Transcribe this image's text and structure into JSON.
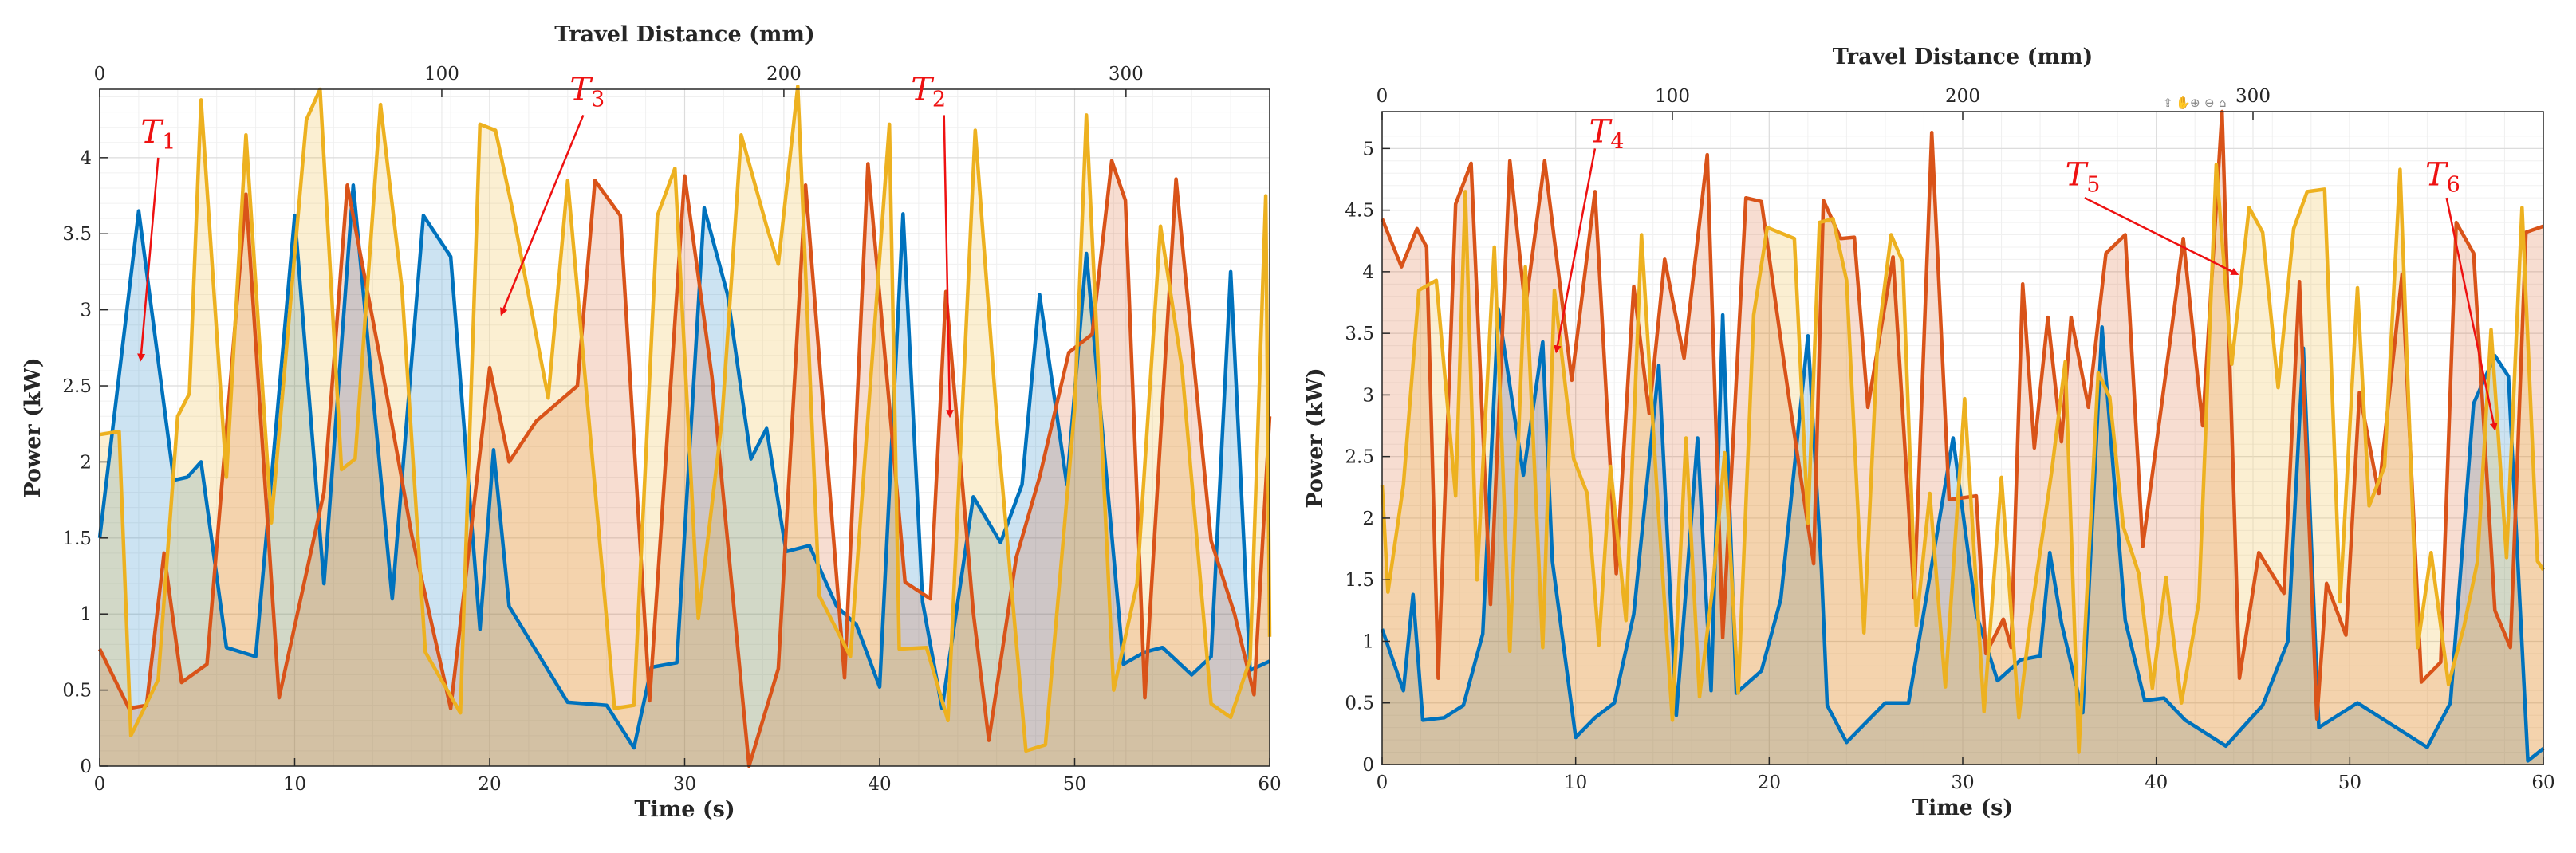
{
  "chart_data": [
    {
      "type": "area",
      "xlabel": "Time (s)",
      "ylabel": "Power (kW)",
      "x2label": "Travel Distance (mm)",
      "xlim": [
        0,
        60
      ],
      "ylim": [
        0,
        4.45
      ],
      "x2lim": [
        0,
        342
      ],
      "xticks": [
        0,
        10,
        20,
        30,
        40,
        50,
        60
      ],
      "yticks": [
        0,
        0.5,
        1,
        1.5,
        2,
        2.5,
        3,
        3.5,
        4
      ],
      "yticklabels": [
        "0",
        "0.5",
        "1",
        "1.5",
        "2",
        "2.5",
        "3",
        "3.5",
        "4"
      ],
      "x2ticks": [
        0,
        100,
        200,
        300
      ],
      "grid": true,
      "series": [
        {
          "color": "#0072BD",
          "x": [
            0,
            2,
            3.8,
            4.5,
            5.2,
            6.5,
            8,
            10,
            11.5,
            13,
            15,
            16.6,
            18,
            19.5,
            20.2,
            21,
            24,
            26,
            27.4,
            28.3,
            29.6,
            31,
            32.2,
            33.4,
            34.2,
            35.2,
            36.4,
            37.8,
            38.8,
            40,
            41.2,
            42.2,
            43.2,
            44.8,
            46.2,
            47.3,
            48.2,
            49.6,
            50.6,
            52.5,
            53.6,
            54.5,
            56,
            57,
            58,
            59,
            60
          ],
          "y": [
            1.5,
            3.65,
            1.88,
            1.9,
            2.0,
            0.78,
            0.72,
            3.62,
            1.2,
            3.82,
            1.1,
            3.62,
            3.35,
            0.9,
            2.08,
            1.05,
            0.42,
            0.4,
            0.12,
            0.65,
            0.68,
            3.67,
            3.1,
            2.02,
            2.22,
            1.41,
            1.45,
            1.05,
            0.93,
            0.52,
            3.63,
            1.08,
            0.38,
            1.77,
            1.47,
            1.85,
            3.1,
            1.85,
            3.37,
            0.67,
            0.75,
            0.78,
            0.6,
            0.72,
            3.25,
            0.63,
            0.69
          ]
        },
        {
          "color": "#D95319",
          "x": [
            0,
            1.5,
            2.4,
            3.3,
            4.2,
            5.5,
            7.5,
            9.2,
            11.5,
            12.7,
            14.5,
            16,
            18,
            20,
            21,
            22.4,
            24.5,
            25.4,
            26.7,
            28.2,
            30,
            31.4,
            33.3,
            34.8,
            36.2,
            38.2,
            39.4,
            41.3,
            42.6,
            43.4,
            44.8,
            45.6,
            47,
            48.2,
            49.7,
            50.9,
            51.9,
            52.6,
            53.6,
            55.2,
            57,
            58.2,
            59.2,
            60
          ],
          "y": [
            0.77,
            0.38,
            0.4,
            1.4,
            0.55,
            0.67,
            3.76,
            0.45,
            1.8,
            3.82,
            2.6,
            1.52,
            0.38,
            2.62,
            2.0,
            2.27,
            2.5,
            3.85,
            3.62,
            0.43,
            3.88,
            2.56,
            0.0,
            0.64,
            3.82,
            0.58,
            3.96,
            1.21,
            1.1,
            3.12,
            1.01,
            0.17,
            1.37,
            1.9,
            2.72,
            2.84,
            3.98,
            3.72,
            0.45,
            3.86,
            1.48,
            1.0,
            0.47,
            2.3
          ]
        },
        {
          "color": "#EDB120",
          "x": [
            0,
            1,
            1.6,
            3,
            4,
            4.6,
            5.2,
            6.5,
            7.5,
            8.8,
            10.6,
            11.3,
            12.4,
            13.1,
            14.4,
            15.5,
            16.7,
            17.6,
            18.5,
            19.5,
            20.3,
            21.1,
            23,
            24,
            26.4,
            27.4,
            28.6,
            29.5,
            30.7,
            31.9,
            32.9,
            34.2,
            34.8,
            35.8,
            36.9,
            38.5,
            40.5,
            41,
            42.4,
            43.5,
            44.9,
            46.1,
            47.5,
            48.5,
            50,
            50.6,
            52,
            53.2,
            54.4,
            55.5,
            57,
            58,
            59,
            59.8,
            60
          ],
          "y": [
            2.18,
            2.2,
            0.2,
            0.57,
            2.3,
            2.45,
            4.38,
            1.9,
            4.15,
            1.6,
            4.25,
            4.45,
            1.95,
            2.02,
            4.35,
            3.14,
            0.75,
            0.55,
            0.35,
            4.22,
            4.18,
            3.7,
            2.42,
            3.85,
            0.38,
            0.4,
            3.62,
            3.93,
            0.97,
            2.26,
            4.15,
            3.55,
            3.3,
            4.47,
            1.12,
            0.72,
            4.22,
            0.77,
            0.78,
            0.3,
            4.18,
            2.13,
            0.1,
            0.14,
            2.35,
            4.28,
            0.5,
            1.2,
            3.55,
            2.62,
            0.41,
            0.32,
            0.7,
            3.75,
            0.85
          ]
        }
      ],
      "annotations": [
        {
          "label": "T",
          "sub": "1",
          "text_xy": [
            3.0,
            4.1
          ],
          "arrow_from": [
            3.0,
            4.0
          ],
          "arrow_to": [
            2.1,
            2.67
          ]
        },
        {
          "label": "T",
          "sub": "3",
          "text_xy": [
            25.0,
            4.38
          ],
          "arrow_from": [
            24.8,
            4.28
          ],
          "arrow_to": [
            20.6,
            2.97
          ]
        },
        {
          "label": "T",
          "sub": "2",
          "text_xy": [
            42.5,
            4.38
          ],
          "arrow_from": [
            43.3,
            4.28
          ],
          "arrow_to": [
            43.6,
            2.3
          ]
        }
      ]
    },
    {
      "type": "area",
      "xlabel": "Time (s)",
      "ylabel": "Power (kW)",
      "x2label": "Travel Distance (mm)",
      "xlim": [
        0,
        60
      ],
      "ylim": [
        0,
        5.3
      ],
      "x2lim": [
        0,
        400
      ],
      "xticks": [
        0,
        10,
        20,
        30,
        40,
        50,
        60
      ],
      "yticks": [
        0,
        0.5,
        1,
        1.5,
        2,
        2.5,
        3,
        3.5,
        4,
        4.5,
        5
      ],
      "yticklabels": [
        "0",
        "0.5",
        "1",
        "1.5",
        "2",
        "2.5",
        "3",
        "3.5",
        "4",
        "4.5",
        "5"
      ],
      "x2ticks": [
        0,
        100,
        200,
        300
      ],
      "grid": true,
      "series": [
        {
          "color": "#0072BD",
          "x": [
            0,
            1.1,
            1.6,
            2.1,
            3.2,
            4.2,
            5.2,
            6,
            7.3,
            8.3,
            8.8,
            10,
            11,
            12,
            13,
            14.3,
            15.2,
            16.3,
            17,
            17.6,
            18.3,
            19.6,
            20.6,
            22,
            22.7,
            23,
            24,
            26,
            27.2,
            29.5,
            30.7,
            31.8,
            33,
            34,
            34.5,
            35.1,
            36.2,
            37.2,
            38.4,
            39.4,
            40.4,
            41.5,
            43.6,
            45.5,
            46.8,
            47.6,
            48.4,
            50.4,
            52.9,
            54,
            55.2,
            56.4,
            57.5,
            58.2,
            59.2,
            60
          ],
          "y": [
            1.1,
            0.6,
            1.38,
            0.36,
            0.38,
            0.48,
            1.06,
            3.7,
            2.35,
            3.43,
            1.65,
            0.22,
            0.38,
            0.5,
            1.22,
            3.24,
            0.4,
            2.65,
            0.6,
            3.65,
            0.58,
            0.76,
            1.34,
            3.48,
            1.58,
            0.48,
            0.18,
            0.5,
            0.5,
            2.65,
            1.22,
            0.68,
            0.85,
            0.88,
            1.72,
            1.15,
            0.42,
            3.55,
            1.17,
            0.52,
            0.54,
            0.36,
            0.15,
            0.48,
            1.0,
            3.38,
            0.3,
            0.5,
            0.25,
            0.14,
            0.5,
            2.93,
            3.32,
            3.15,
            0.03,
            0.13
          ]
        },
        {
          "color": "#D95319",
          "x": [
            0,
            1,
            1.8,
            2.3,
            2.9,
            3.8,
            4.6,
            5.6,
            6.6,
            7.4,
            8.4,
            9.8,
            11,
            12.1,
            13,
            13.8,
            14.6,
            15.6,
            16.8,
            17.6,
            18.8,
            19.6,
            21,
            22.3,
            22.8,
            23.7,
            24.4,
            25.1,
            26.4,
            27.5,
            28.4,
            29.3,
            30.7,
            31.2,
            32.1,
            32.5,
            33.1,
            33.7,
            34.4,
            35.1,
            35.6,
            36.5,
            37.4,
            38.4,
            39.3,
            40.7,
            41.4,
            42.4,
            43.4,
            44.3,
            45.3,
            46.6,
            47.4,
            48.3,
            48.8,
            49.8,
            50.5,
            51.5,
            52.7,
            53.7,
            54.7,
            55.5,
            56.4,
            57.5,
            58.3,
            59.1,
            60
          ],
          "y": [
            4.43,
            4.04,
            4.35,
            4.2,
            0.7,
            4.55,
            4.88,
            1.3,
            4.9,
            3.7,
            4.9,
            3.12,
            4.65,
            1.55,
            3.88,
            2.85,
            4.1,
            3.3,
            4.95,
            1.03,
            4.6,
            4.57,
            3.0,
            1.63,
            4.58,
            4.27,
            4.28,
            2.9,
            4.12,
            1.35,
            5.13,
            2.15,
            2.18,
            0.9,
            1.18,
            0.95,
            3.9,
            2.57,
            3.63,
            2.62,
            3.63,
            2.9,
            4.15,
            4.3,
            1.77,
            3.42,
            4.27,
            2.75,
            5.3,
            0.7,
            1.72,
            1.39,
            3.92,
            0.37,
            1.47,
            1.05,
            3.02,
            2.2,
            3.98,
            0.67,
            0.83,
            4.4,
            4.15,
            1.25,
            0.95,
            4.32,
            4.37
          ]
        },
        {
          "color": "#EDB120",
          "x": [
            0,
            0.3,
            1.1,
            1.9,
            2.8,
            3.8,
            4.3,
            4.9,
            5.8,
            6.6,
            7.4,
            8.3,
            8.9,
            9.9,
            10.6,
            11.2,
            11.8,
            12.6,
            13.4,
            14.2,
            15,
            15.7,
            16.4,
            17.1,
            17.7,
            18.4,
            19.2,
            19.9,
            21.3,
            22,
            22.6,
            23.3,
            24,
            24.9,
            25.6,
            26.3,
            26.9,
            27.6,
            28.3,
            29.1,
            30.1,
            31.1,
            32,
            32.9,
            33.5,
            34.6,
            35.3,
            36,
            37,
            37.6,
            38.3,
            39.1,
            39.8,
            40.5,
            41.3,
            42.2,
            43.1,
            43.9,
            44.8,
            45.5,
            46.3,
            47.1,
            47.8,
            48.7,
            49.5,
            50.4,
            51,
            51.8,
            52.6,
            53.5,
            54.2,
            55.1,
            55.9,
            56.6,
            57.3,
            58.1,
            58.9,
            59.7,
            60
          ],
          "y": [
            2.27,
            1.4,
            2.27,
            3.85,
            3.93,
            2.18,
            4.65,
            1.5,
            4.2,
            0.92,
            4.04,
            0.95,
            3.85,
            2.48,
            2.2,
            0.97,
            2.42,
            1.17,
            4.3,
            2.23,
            0.36,
            2.65,
            0.55,
            1.47,
            2.53,
            0.58,
            3.65,
            4.36,
            4.27,
            1.96,
            4.4,
            4.43,
            3.93,
            1.07,
            3.42,
            4.3,
            4.08,
            1.13,
            2.2,
            0.63,
            2.97,
            0.43,
            2.33,
            0.38,
            1.18,
            2.38,
            3.27,
            0.1,
            3.18,
            2.98,
            1.93,
            1.55,
            0.62,
            1.52,
            0.5,
            1.32,
            4.87,
            3.25,
            4.52,
            4.32,
            3.06,
            4.35,
            4.65,
            4.67,
            1.32,
            3.87,
            2.1,
            2.42,
            4.83,
            0.95,
            1.72,
            0.65,
            1.12,
            1.65,
            3.53,
            1.68,
            4.52,
            1.65,
            1.58
          ]
        }
      ],
      "annotations": [
        {
          "label": "T",
          "sub": "4",
          "text_xy": [
            11.6,
            5.05
          ],
          "arrow_from": [
            11,
            5.0
          ],
          "arrow_to": [
            9,
            3.35
          ]
        },
        {
          "label": "T",
          "sub": "5",
          "text_xy": [
            36.2,
            4.7
          ],
          "arrow_from": [
            36.3,
            4.6
          ],
          "arrow_to": [
            44.2,
            3.98
          ]
        },
        {
          "label": "T",
          "sub": "6",
          "text_xy": [
            54.8,
            4.7
          ],
          "arrow_from": [
            55,
            4.6
          ],
          "arrow_to": [
            57.5,
            2.72
          ]
        }
      ]
    }
  ]
}
